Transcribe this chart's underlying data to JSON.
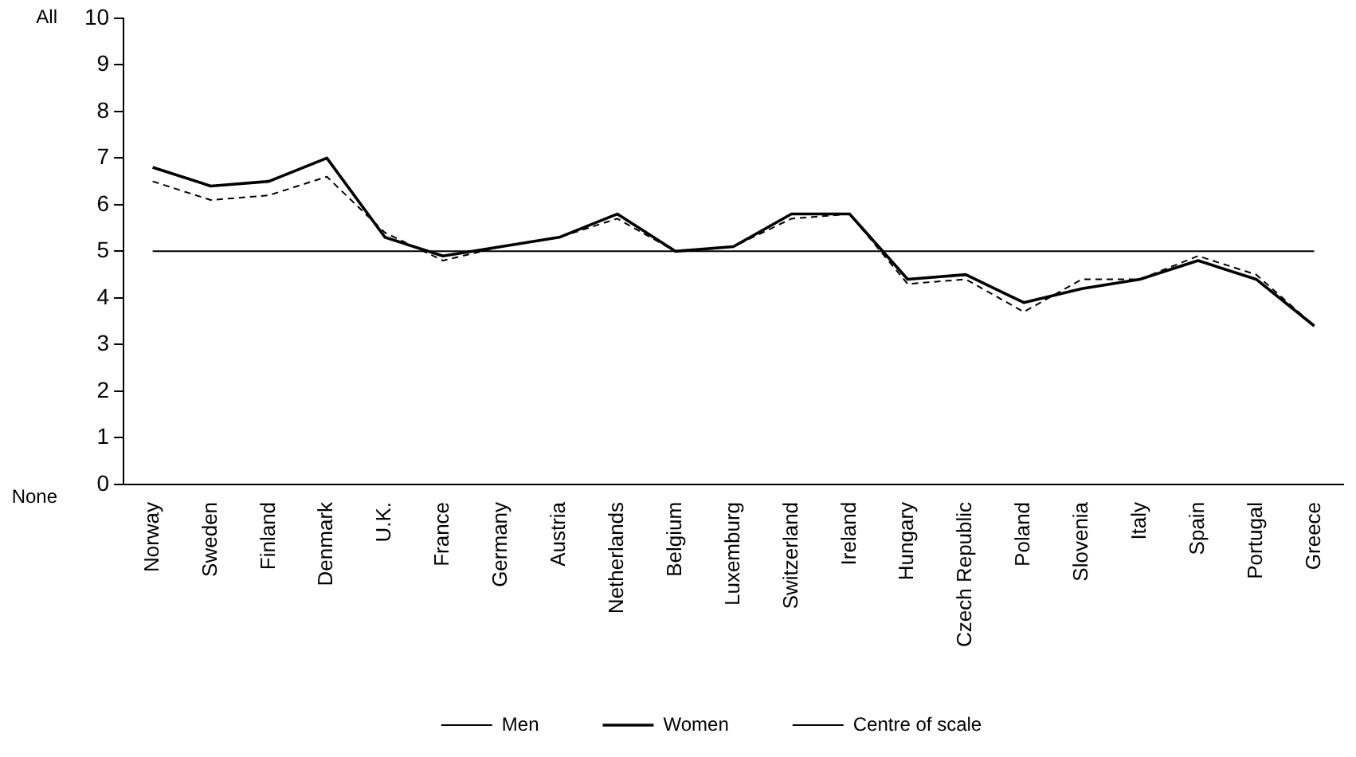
{
  "chart_data": {
    "type": "line",
    "categories": [
      "Norway",
      "Sweden",
      "Finland",
      "Denmark",
      "U.K.",
      "France",
      "Germany",
      "Austria",
      "Netherlands",
      "Belgium",
      "Luxemburg",
      "Switzerland",
      "Ireland",
      "Hungary",
      "Czech Republic",
      "Poland",
      "Slovenia",
      "Italy",
      "Spain",
      "Portugal",
      "Greece"
    ],
    "series": [
      {
        "name": "Men",
        "color": "#000000",
        "line_style": "dashed",
        "values": [
          6.5,
          6.1,
          6.2,
          6.6,
          5.4,
          4.8,
          5.1,
          5.3,
          5.7,
          5.0,
          5.1,
          5.7,
          5.8,
          4.3,
          4.4,
          3.7,
          4.4,
          4.4,
          4.9,
          4.5,
          3.4
        ]
      },
      {
        "name": "Women",
        "color": "#000000",
        "line_style": "solid",
        "values": [
          6.8,
          6.4,
          6.5,
          7.0,
          5.3,
          4.9,
          5.1,
          5.3,
          5.8,
          5.0,
          5.1,
          5.8,
          5.8,
          4.4,
          4.5,
          3.9,
          4.2,
          4.4,
          4.8,
          4.4,
          3.4
        ]
      }
    ],
    "ylim": [
      0,
      10
    ],
    "yticks": [
      0,
      1,
      2,
      3,
      4,
      5,
      6,
      7,
      8,
      9,
      10
    ],
    "ref_lines": [
      {
        "axis": "y",
        "value": 5,
        "label": "Centre of scale",
        "color": "#000000"
      }
    ],
    "annotations": [
      "All",
      "None"
    ],
    "grid": false,
    "legend": "bottom",
    "marker": "none"
  }
}
